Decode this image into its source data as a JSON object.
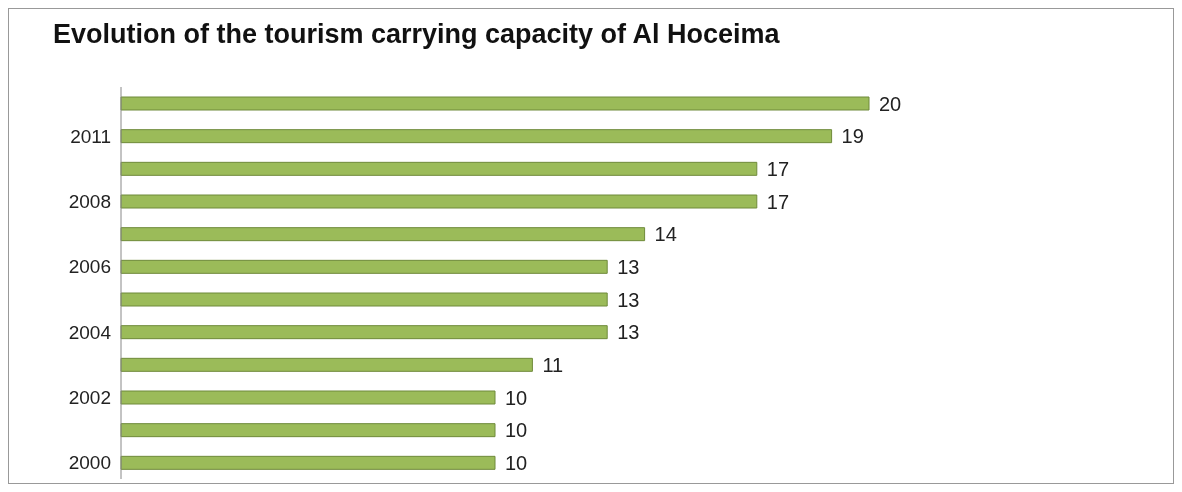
{
  "chart_data": {
    "type": "bar",
    "orientation": "horizontal",
    "title": "Evolution of the tourism carrying capacity of Al Hoceima",
    "categories": [
      null,
      "2011",
      null,
      "2008",
      null,
      "2006",
      null,
      "2004",
      null,
      "2002",
      null,
      "2000"
    ],
    "values": [
      20,
      19,
      17,
      17,
      14,
      13,
      13,
      13,
      11,
      10,
      10,
      10
    ],
    "color": "#9bbb59",
    "data_labels": true,
    "grid": false,
    "legend": false
  }
}
